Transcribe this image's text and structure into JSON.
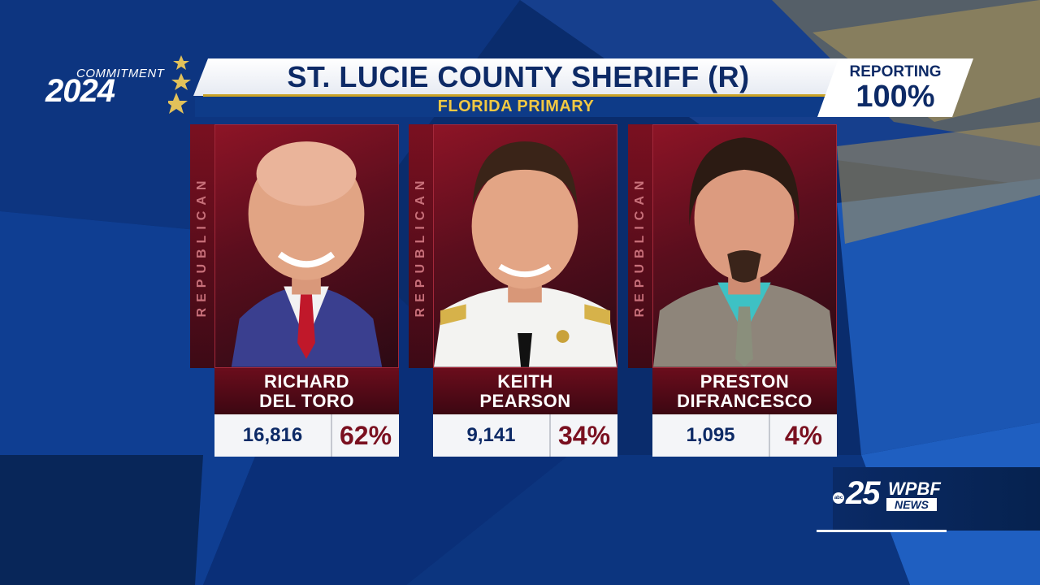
{
  "brand": {
    "top": "COMMITMENT",
    "year": "2024"
  },
  "header": {
    "title": "ST. LUCIE COUNTY SHERIFF (R)",
    "subtitle": "FLORIDA PRIMARY",
    "reporting_label": "REPORTING",
    "reporting_value": "100%"
  },
  "candidates": [
    {
      "party": "REPUBLICAN",
      "first": "RICHARD",
      "last": "DEL TORO",
      "votes": "16,816",
      "percent": "62%"
    },
    {
      "party": "REPUBLICAN",
      "first": "KEITH",
      "last": "PEARSON",
      "votes": "9,141",
      "percent": "34%"
    },
    {
      "party": "REPUBLICAN",
      "first": "PRESTON",
      "last": "DIFRANCESCO",
      "votes": "1,095",
      "percent": "4%"
    }
  ],
  "station": {
    "network": "abc",
    "channel": "25",
    "call": "WPBF",
    "tag": "NEWS"
  },
  "colors": {
    "navy": "#0d2a66",
    "republican_red": "#7a1020",
    "gold": "#f1c842",
    "background": "#0b2f73"
  }
}
